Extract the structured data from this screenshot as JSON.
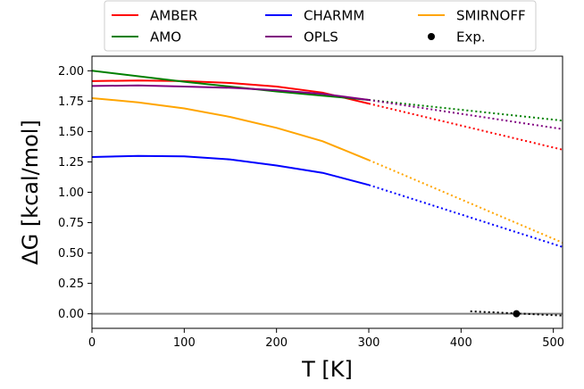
{
  "chart_data": {
    "type": "line",
    "title": "",
    "xlabel": "T [K]",
    "ylabel": "ΔG [kcal/mol]",
    "xlim": [
      0,
      510
    ],
    "ylim": [
      -0.12,
      2.12
    ],
    "xticks": [
      0,
      100,
      200,
      300,
      400,
      500
    ],
    "yticks": [
      0.0,
      0.25,
      0.5,
      0.75,
      1.0,
      1.25,
      1.5,
      1.75,
      2.0
    ],
    "ytick_labels": [
      "0.00",
      "0.25",
      "0.50",
      "0.75",
      "1.00",
      "1.25",
      "1.50",
      "1.75",
      "2.00"
    ],
    "grid": false,
    "legend_position": "top-center-outside",
    "series": [
      {
        "name": "AMBER",
        "color": "#ff0000",
        "solid": {
          "x": [
            0,
            50,
            100,
            150,
            200,
            250,
            300
          ],
          "y": [
            1.915,
            1.92,
            1.915,
            1.9,
            1.87,
            1.82,
            1.73
          ]
        },
        "dotted": {
          "x": [
            300,
            510
          ],
          "y": [
            1.73,
            1.35
          ]
        }
      },
      {
        "name": "AMO",
        "color": "#008000",
        "solid": {
          "x": [
            0,
            100,
            200,
            300
          ],
          "y": [
            2.0,
            1.91,
            1.83,
            1.76
          ]
        },
        "dotted": {
          "x": [
            300,
            510
          ],
          "y": [
            1.76,
            1.59
          ]
        }
      },
      {
        "name": "CHARMM",
        "color": "#0000ff",
        "solid": {
          "x": [
            0,
            50,
            100,
            150,
            200,
            250,
            300
          ],
          "y": [
            1.29,
            1.3,
            1.295,
            1.27,
            1.22,
            1.16,
            1.06
          ]
        },
        "dotted": {
          "x": [
            300,
            510
          ],
          "y": [
            1.06,
            0.55
          ]
        }
      },
      {
        "name": "OPLS",
        "color": "#800080",
        "solid": {
          "x": [
            0,
            50,
            100,
            150,
            200,
            250,
            300
          ],
          "y": [
            1.875,
            1.88,
            1.87,
            1.86,
            1.84,
            1.81,
            1.76
          ]
        },
        "dotted": {
          "x": [
            300,
            510
          ],
          "y": [
            1.76,
            1.52
          ]
        }
      },
      {
        "name": "SMIRNOFF",
        "color": "#ffa500",
        "solid": {
          "x": [
            0,
            50,
            100,
            150,
            200,
            250,
            300
          ],
          "y": [
            1.775,
            1.74,
            1.69,
            1.62,
            1.53,
            1.42,
            1.265
          ]
        },
        "dotted": {
          "x": [
            300,
            510
          ],
          "y": [
            1.265,
            0.585
          ]
        }
      }
    ],
    "experimental": {
      "name": "Exp.",
      "color": "#000000",
      "point": {
        "x": 460,
        "y": 0.0
      },
      "dotted": {
        "x": [
          410,
          510
        ],
        "y": [
          0.02,
          -0.015
        ]
      }
    },
    "zero_line": {
      "y": 0.0,
      "color": "#808080"
    },
    "legend_order": [
      "AMBER",
      "AMO",
      "CHARMM",
      "OPLS",
      "SMIRNOFF",
      "Exp."
    ]
  }
}
